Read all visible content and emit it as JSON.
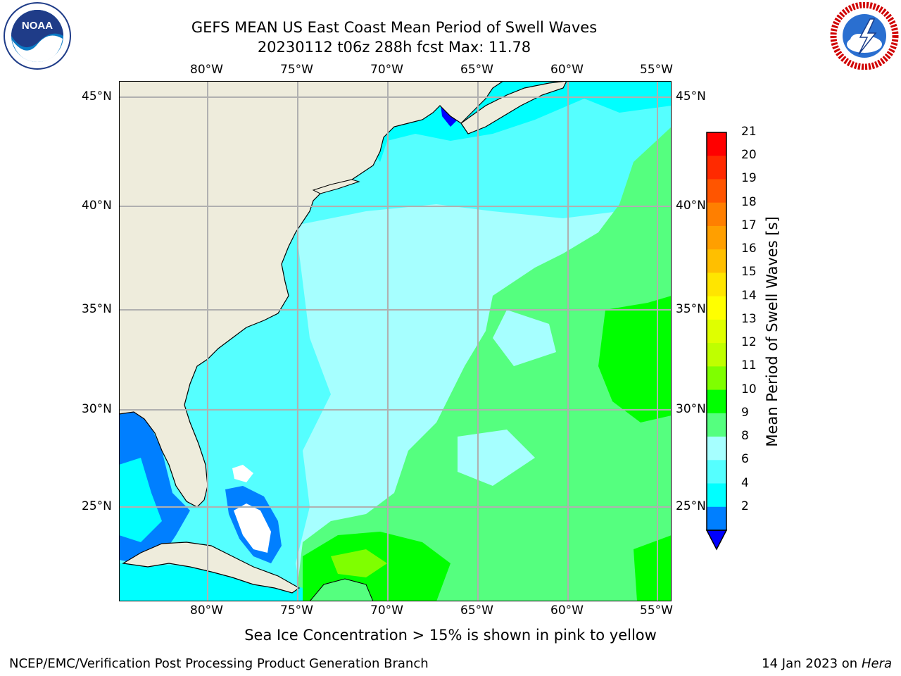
{
  "title": {
    "line1": "GEFS MEAN US East Coast Mean Period of Swell Waves",
    "line2": "20230112 t06z 288h fcst   Max: 11.78"
  },
  "logos": {
    "left": {
      "name": "NOAA",
      "text": "NOAA",
      "ring_text": "NATIONAL OCEANIC AND ATMOSPHERIC ADMINISTRATION · U.S. DEPARTMENT OF COMMERCE"
    },
    "right": {
      "name": "National Weather Service",
      "ring_text": "NATIONAL WEATHER SERVICE"
    }
  },
  "map": {
    "lon_labels": [
      "80°W",
      "75°W",
      "70°W",
      "65°W",
      "60°W",
      "55°W"
    ],
    "lat_labels": [
      "45°N",
      "40°N",
      "35°N",
      "30°N",
      "25°N"
    ],
    "land_color": "#eeecdc",
    "grid_color": "#b0b0b0"
  },
  "colorbar": {
    "label": "Mean Period of Swell Waves [s]",
    "ticks": [
      "21",
      "20",
      "19",
      "18",
      "17",
      "16",
      "15",
      "14",
      "13",
      "12",
      "11",
      "10",
      "9",
      "8",
      "6",
      "4",
      "2"
    ],
    "colors_top_to_bottom": [
      "#ff0000",
      "#ff2a00",
      "#ff5500",
      "#ff7f00",
      "#ff9f00",
      "#ffbf00",
      "#ffe500",
      "#ffff00",
      "#dfff00",
      "#bfff00",
      "#7fff00",
      "#00ff00",
      "#55ff7f",
      "#a6ffff",
      "#55ffff",
      "#00ffff",
      "#007fff"
    ],
    "under_color": "#0000ff"
  },
  "note": "Sea Ice Concentration > 15% is shown in pink to yellow",
  "footer": {
    "left": "NCEP/EMC/Verification Post Processing Product Generation Branch",
    "right_prefix": "14 Jan 2023 on ",
    "right_italic": "Hera"
  }
}
